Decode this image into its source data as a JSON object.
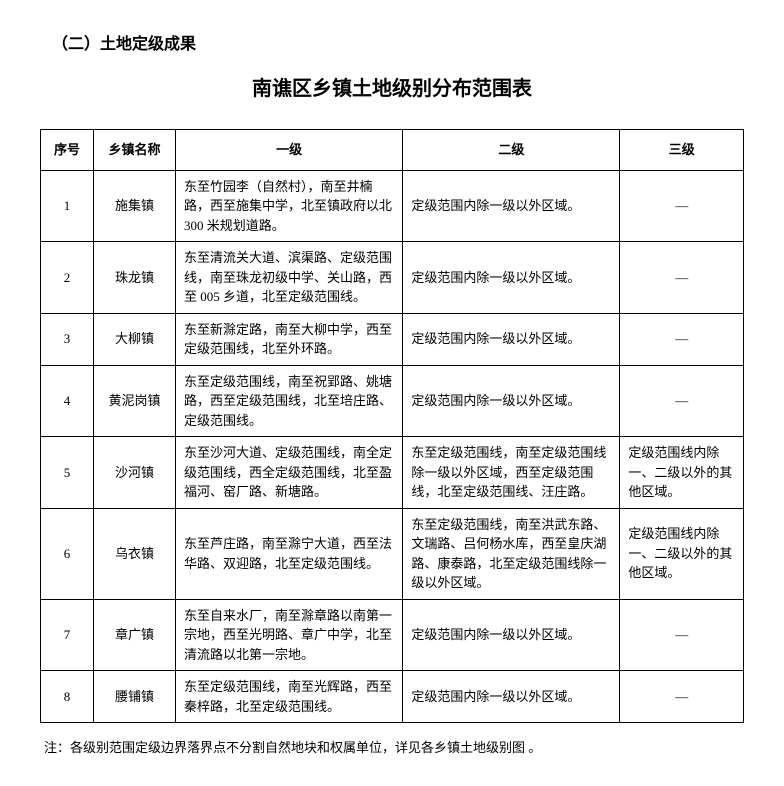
{
  "section_heading": "（二）土地定级成果",
  "title": "南谯区乡镇土地级别分布范围表",
  "columns": [
    "序号",
    "乡镇名称",
    "一级",
    "二级",
    "三级"
  ],
  "rows": [
    {
      "seq": "1",
      "name": "施集镇",
      "l1": "东至竹园李（自然村），南至井楠路，西至施集中学，北至镇政府以北 300 米规划道路。",
      "l2": "定级范围内除一级以外区域。",
      "l3": "—"
    },
    {
      "seq": "2",
      "name": "珠龙镇",
      "l1": "东至清流关大道、滨渠路、定级范围线，南至珠龙初级中学、关山路，西至 005 乡道，北至定级范围线。",
      "l2": "定级范围内除一级以外区域。",
      "l3": "—"
    },
    {
      "seq": "3",
      "name": "大柳镇",
      "l1": "东至新滁定路，南至大柳中学，西至定级范围线，北至外环路。",
      "l2": "定级范围内除一级以外区域。",
      "l3": "—"
    },
    {
      "seq": "4",
      "name": "黄泥岗镇",
      "l1": "东至定级范围线，南至祝郢路、姚塘路，西至定级范围线，北至培庄路、定级范围线。",
      "l2": "定级范围内除一级以外区域。",
      "l3": "—"
    },
    {
      "seq": "5",
      "name": "沙河镇",
      "l1": "东至沙河大道、定级范围线，南全定级范围线，西全定级范围线，北至盈福河、窑厂路、新塘路。",
      "l2": "东至定级范围线，南至定级范围线除一级以外区域，西至定级范围线，北至定级范围线、汪庄路。",
      "l3": "定级范围线内除一、二级以外的其他区域。"
    },
    {
      "seq": "6",
      "name": "乌衣镇",
      "l1": "东至芦庄路，南至滁宁大道，西至法华路、双迎路，北至定级范围线。",
      "l2": "东至定级范围线，南至洪武东路、文瑞路、吕何杨水库，西至皇庆湖路、康泰路，北至定级范围线除一级以外区域。",
      "l3": "定级范围线内除一、二级以外的其他区域。"
    },
    {
      "seq": "7",
      "name": "章广镇",
      "l1": "东至自来水厂，南至滁章路以南第一宗地，西至光明路、章广中学，北至清流路以北第一宗地。",
      "l2": "定级范围内除一级以外区域。",
      "l3": "—"
    },
    {
      "seq": "8",
      "name": "腰铺镇",
      "l1": "东至定级范围线，南至光辉路，西至秦梓路，北至定级范围线。",
      "l2": "定级范围内除一级以外区域。",
      "l3": "—"
    }
  ],
  "footnote": "注：各级别范围定级边界落界点不分割自然地块和权属单位，详见各乡镇土地级别图 。"
}
